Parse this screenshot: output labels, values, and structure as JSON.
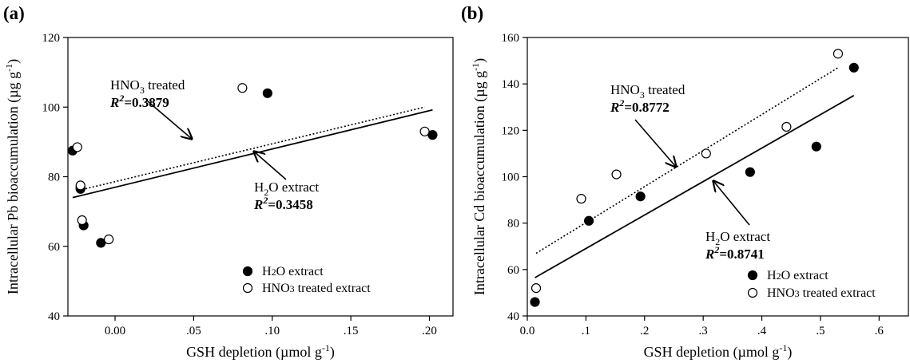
{
  "chart_data": [
    {
      "panel_label": "(a)",
      "type": "scatter",
      "xlabel": "GSH depletion (µmol g",
      "xlabel_sup": "-1",
      "xlabel_end": ")",
      "ylabel": "Intracellular Pb bioaccumulation (µg g",
      "ylabel_sup": "-1",
      "ylabel_end": ")",
      "xlim": [
        -0.03,
        0.215
      ],
      "ylim": [
        40,
        120
      ],
      "xticks": [
        0.0,
        0.05,
        0.1,
        0.15,
        0.2
      ],
      "xtick_labels": [
        "0.00",
        ".05",
        ".10",
        ".15",
        ".20"
      ],
      "yticks": [
        40,
        60,
        80,
        100,
        120
      ],
      "ytick_labels": [
        "40",
        "60",
        "80",
        "100",
        "120"
      ],
      "series": [
        {
          "name": "H2O extract",
          "legend_pre": "H",
          "legend_sub": "2",
          "legend_post": "O extract",
          "marker": "filled",
          "x": [
            -0.027,
            -0.022,
            -0.022,
            -0.02,
            -0.009,
            0.097,
            0.202
          ],
          "y": [
            87.5,
            77.0,
            76.5,
            66.0,
            61.0,
            104.0,
            92.0
          ],
          "fit": {
            "line": "solid",
            "x": [
              -0.027,
              0.202
            ],
            "y": [
              74.0,
              99.2
            ]
          }
        },
        {
          "name": "HNO3 treated extract",
          "legend_pre": "HNO",
          "legend_sub": "3",
          "legend_post": " treated extract",
          "marker": "open",
          "x": [
            -0.024,
            -0.022,
            -0.021,
            -0.004,
            0.081,
            0.197
          ],
          "y": [
            88.5,
            77.5,
            67.5,
            62.0,
            105.5,
            93.0
          ],
          "fit": {
            "line": "dotted",
            "x": [
              -0.021,
              0.197
            ],
            "y": [
              76.3,
              100.0
            ]
          }
        }
      ],
      "annotations": [
        {
          "id": "hno3",
          "name_pre": "HNO",
          "name_sub": "3",
          "name_post": " treated",
          "r2_prefix": "R",
          "r2_sup": "2",
          "r2_value": "=0.3879"
        },
        {
          "id": "h2o",
          "name_pre": "H",
          "name_sub": "2",
          "name_post": "O extract",
          "r2_prefix": "R",
          "r2_sup": "2",
          "r2_value": "=0.3458"
        }
      ],
      "legend_position": "bottom-right"
    },
    {
      "panel_label": "(b)",
      "type": "scatter",
      "xlabel": "GSH depletion (µmol g",
      "xlabel_sup": "-1",
      "xlabel_end": ")",
      "ylabel": "Intracellular Cd bioaccumulation (µg g",
      "ylabel_sup": "-1",
      "ylabel_end": ")",
      "xlim": [
        0.0,
        0.65
      ],
      "ylim": [
        40,
        160
      ],
      "xticks": [
        0.0,
        0.1,
        0.2,
        0.3,
        0.4,
        0.5,
        0.6
      ],
      "xtick_labels": [
        "0.0",
        ".1",
        ".2",
        ".3",
        ".4",
        ".5",
        ".6"
      ],
      "yticks": [
        40,
        60,
        80,
        100,
        120,
        140,
        160
      ],
      "ytick_labels": [
        "40",
        "60",
        "80",
        "100",
        "120",
        "140",
        "160"
      ],
      "series": [
        {
          "name": "H2O extract",
          "legend_pre": "H",
          "legend_sub": "2",
          "legend_post": "O extract",
          "marker": "filled",
          "x": [
            0.013,
            0.105,
            0.193,
            0.38,
            0.493,
            0.557
          ],
          "y": [
            46.0,
            81.0,
            91.5,
            102.0,
            113.0,
            147.0
          ],
          "fit": {
            "line": "solid",
            "x": [
              0.013,
              0.557
            ],
            "y": [
              56.5,
              135.0
            ]
          }
        },
        {
          "name": "HNO3 treated extract",
          "legend_pre": "HNO",
          "legend_sub": "3",
          "legend_post": " treated extract",
          "marker": "open",
          "x": [
            0.015,
            0.092,
            0.152,
            0.305,
            0.442,
            0.53
          ],
          "y": [
            52.0,
            90.5,
            101.0,
            110.0,
            121.5,
            153.0
          ],
          "fit": {
            "line": "dotted",
            "x": [
              0.015,
              0.53
            ],
            "y": [
              67.0,
              147.0
            ]
          }
        }
      ],
      "annotations": [
        {
          "id": "hno3",
          "name_pre": "HNO",
          "name_sub": "3",
          "name_post": " treated",
          "r2_prefix": "R",
          "r2_sup": "2",
          "r2_value": "=0.8772"
        },
        {
          "id": "h2o",
          "name_pre": "H",
          "name_sub": "2",
          "name_post": "O extract",
          "r2_prefix": "R",
          "r2_sup": "2",
          "r2_value": "=0.8741"
        }
      ],
      "legend_position": "bottom-right"
    }
  ]
}
